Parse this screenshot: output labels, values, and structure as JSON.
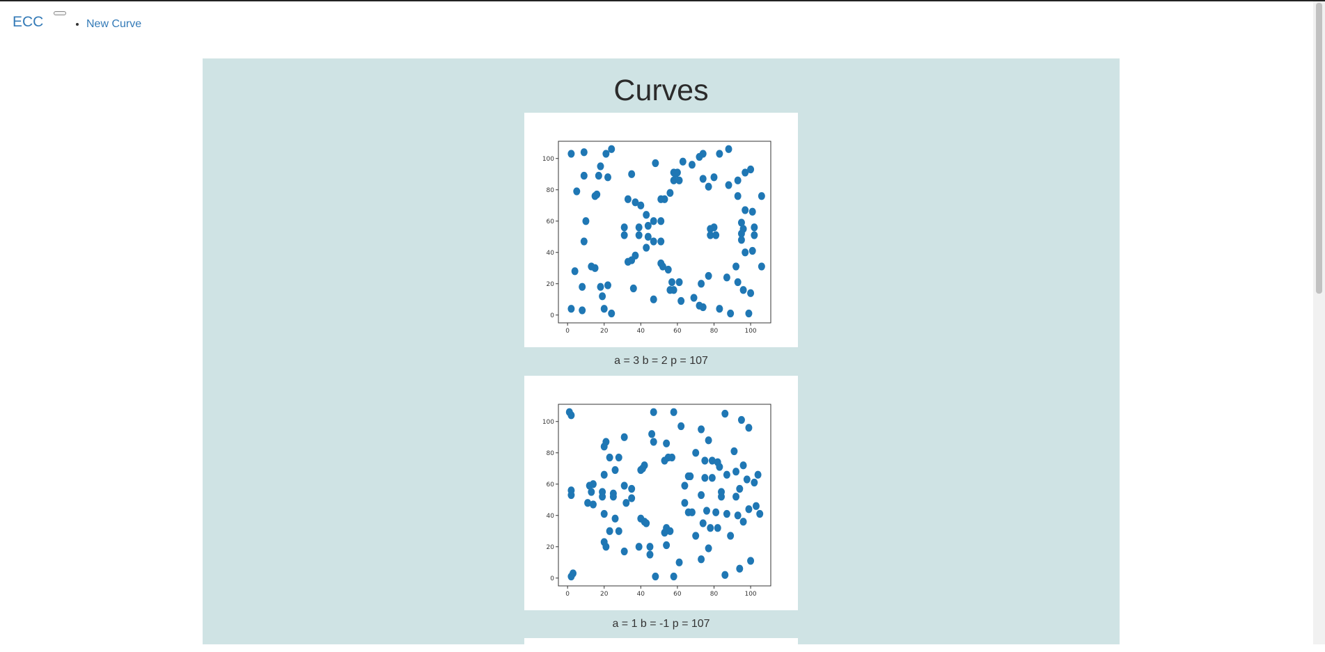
{
  "nav": {
    "brand": "ECC",
    "links": [
      "New Curve"
    ]
  },
  "main": {
    "title": "Curves"
  },
  "colors": {
    "panel_bg": "#cfe3e4",
    "point": "#1f77b4",
    "link": "#337ab7"
  },
  "chart_data": [
    {
      "type": "scatter",
      "caption": "a = 3 b = 2 p = 107",
      "xlim": [
        -5,
        111
      ],
      "ylim": [
        -5,
        111
      ],
      "xticks": [
        0,
        20,
        40,
        60,
        80,
        100
      ],
      "yticks": [
        0,
        20,
        40,
        60,
        80,
        100
      ],
      "points": [
        [
          2,
          103
        ],
        [
          9,
          104
        ],
        [
          24,
          106
        ],
        [
          88,
          106
        ],
        [
          21,
          103
        ],
        [
          83,
          103
        ],
        [
          74,
          103
        ],
        [
          72,
          101
        ],
        [
          63,
          98
        ],
        [
          48,
          97
        ],
        [
          68,
          96
        ],
        [
          18,
          95
        ],
        [
          100,
          93
        ],
        [
          97,
          91
        ],
        [
          58,
          91
        ],
        [
          60,
          91
        ],
        [
          59,
          90
        ],
        [
          9,
          89
        ],
        [
          17,
          89
        ],
        [
          35,
          90
        ],
        [
          22,
          88
        ],
        [
          93,
          86
        ],
        [
          58,
          86
        ],
        [
          61,
          86
        ],
        [
          74,
          87
        ],
        [
          80,
          88
        ],
        [
          88,
          83
        ],
        [
          77,
          82
        ],
        [
          5,
          79
        ],
        [
          16,
          77
        ],
        [
          15,
          76
        ],
        [
          33,
          74
        ],
        [
          56,
          78
        ],
        [
          53,
          74
        ],
        [
          51,
          74
        ],
        [
          37,
          72
        ],
        [
          93,
          76
        ],
        [
          106,
          76
        ],
        [
          40,
          70
        ],
        [
          97,
          67
        ],
        [
          101,
          66
        ],
        [
          43,
          64
        ],
        [
          10,
          60
        ],
        [
          47,
          60
        ],
        [
          51,
          60
        ],
        [
          95,
          59
        ],
        [
          31,
          56
        ],
        [
          39,
          56
        ],
        [
          44,
          57
        ],
        [
          78,
          55
        ],
        [
          80,
          56
        ],
        [
          96,
          55
        ],
        [
          102,
          56
        ],
        [
          95,
          52
        ],
        [
          102,
          51
        ],
        [
          31,
          51
        ],
        [
          39,
          51
        ],
        [
          44,
          50
        ],
        [
          78,
          51
        ],
        [
          81,
          51
        ],
        [
          47,
          47
        ],
        [
          51,
          47
        ],
        [
          9,
          47
        ],
        [
          95,
          48
        ],
        [
          43,
          43
        ],
        [
          97,
          40
        ],
        [
          101,
          41
        ],
        [
          37,
          38
        ],
        [
          35,
          35
        ],
        [
          33,
          34
        ],
        [
          51,
          33
        ],
        [
          52,
          31
        ],
        [
          55,
          29
        ],
        [
          13,
          31
        ],
        [
          15,
          30
        ],
        [
          4,
          28
        ],
        [
          92,
          31
        ],
        [
          106,
          31
        ],
        [
          87,
          24
        ],
        [
          77,
          25
        ],
        [
          57,
          21
        ],
        [
          61,
          21
        ],
        [
          73,
          20
        ],
        [
          93,
          21
        ],
        [
          8,
          18
        ],
        [
          18,
          18
        ],
        [
          22,
          19
        ],
        [
          36,
          17
        ],
        [
          56,
          16
        ],
        [
          58,
          16
        ],
        [
          96,
          16
        ],
        [
          100,
          14
        ],
        [
          19,
          12
        ],
        [
          47,
          10
        ],
        [
          62,
          9
        ],
        [
          69,
          11
        ],
        [
          72,
          6
        ],
        [
          74,
          5
        ],
        [
          20,
          4
        ],
        [
          2,
          4
        ],
        [
          8,
          3
        ],
        [
          24,
          1
        ],
        [
          83,
          4
        ],
        [
          89,
          1
        ],
        [
          99,
          1
        ]
      ]
    },
    {
      "type": "scatter",
      "caption": "a = 1 b = -1 p = 107",
      "xlim": [
        -5,
        111
      ],
      "ylim": [
        -5,
        111
      ],
      "xticks": [
        0,
        20,
        40,
        60,
        80,
        100
      ],
      "yticks": [
        0,
        20,
        40,
        60,
        80,
        100
      ],
      "points": [
        [
          1,
          106
        ],
        [
          2,
          104
        ],
        [
          47,
          106
        ],
        [
          58,
          106
        ],
        [
          86,
          105
        ],
        [
          95,
          101
        ],
        [
          99,
          96
        ],
        [
          62,
          97
        ],
        [
          73,
          95
        ],
        [
          46,
          92
        ],
        [
          31,
          90
        ],
        [
          54,
          86
        ],
        [
          47,
          87
        ],
        [
          77,
          88
        ],
        [
          21,
          87
        ],
        [
          20,
          84
        ],
        [
          91,
          81
        ],
        [
          70,
          80
        ],
        [
          23,
          77
        ],
        [
          28,
          77
        ],
        [
          55,
          77
        ],
        [
          57,
          77
        ],
        [
          53,
          75
        ],
        [
          75,
          75
        ],
        [
          79,
          75
        ],
        [
          82,
          74
        ],
        [
          42,
          72
        ],
        [
          40,
          69
        ],
        [
          41,
          70
        ],
        [
          96,
          72
        ],
        [
          83,
          71
        ],
        [
          26,
          69
        ],
        [
          20,
          66
        ],
        [
          67,
          65
        ],
        [
          66,
          65
        ],
        [
          87,
          66
        ],
        [
          92,
          68
        ],
        [
          104,
          66
        ],
        [
          98,
          63
        ],
        [
          102,
          61
        ],
        [
          75,
          64
        ],
        [
          79,
          64
        ],
        [
          12,
          59
        ],
        [
          14,
          60
        ],
        [
          31,
          59
        ],
        [
          35,
          57
        ],
        [
          64,
          59
        ],
        [
          94,
          57
        ],
        [
          2,
          56
        ],
        [
          2,
          53
        ],
        [
          19,
          55
        ],
        [
          25,
          54
        ],
        [
          13,
          55
        ],
        [
          25,
          52
        ],
        [
          19,
          52
        ],
        [
          35,
          51
        ],
        [
          73,
          53
        ],
        [
          84,
          52
        ],
        [
          84,
          55
        ],
        [
          92,
          52
        ],
        [
          11,
          48
        ],
        [
          14,
          47
        ],
        [
          32,
          48
        ],
        [
          64,
          48
        ],
        [
          66,
          42
        ],
        [
          68,
          42
        ],
        [
          76,
          43
        ],
        [
          81,
          42
        ],
        [
          87,
          41
        ],
        [
          93,
          40
        ],
        [
          99,
          44
        ],
        [
          103,
          46
        ],
        [
          105,
          41
        ],
        [
          96,
          36
        ],
        [
          20,
          41
        ],
        [
          26,
          38
        ],
        [
          40,
          38
        ],
        [
          42,
          36
        ],
        [
          43,
          35
        ],
        [
          54,
          32
        ],
        [
          56,
          30
        ],
        [
          53,
          29
        ],
        [
          74,
          35
        ],
        [
          78,
          32
        ],
        [
          82,
          32
        ],
        [
          89,
          27
        ],
        [
          23,
          30
        ],
        [
          28,
          30
        ],
        [
          70,
          27
        ],
        [
          20,
          23
        ],
        [
          21,
          20
        ],
        [
          39,
          20
        ],
        [
          31,
          17
        ],
        [
          45,
          20
        ],
        [
          45,
          15
        ],
        [
          54,
          21
        ],
        [
          77,
          19
        ],
        [
          73,
          12
        ],
        [
          61,
          10
        ],
        [
          100,
          11
        ],
        [
          94,
          6
        ],
        [
          3,
          3
        ],
        [
          2,
          1
        ],
        [
          48,
          1
        ],
        [
          58,
          1
        ],
        [
          86,
          2
        ]
      ]
    }
  ]
}
